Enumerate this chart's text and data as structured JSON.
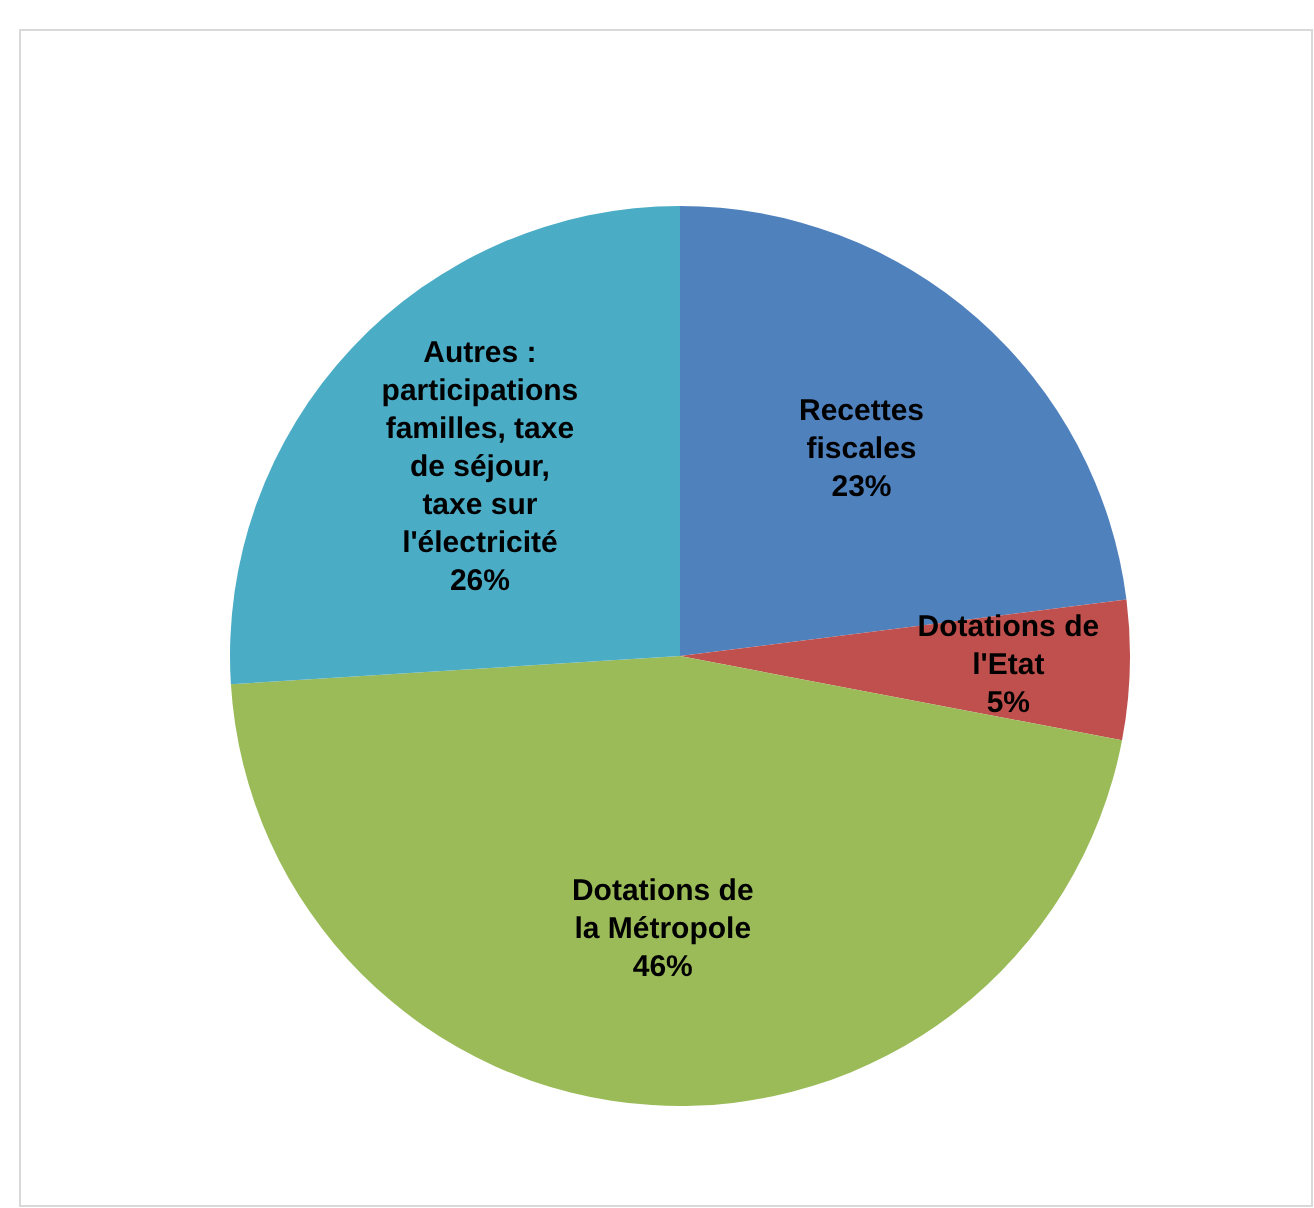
{
  "chart_data": {
    "type": "pie",
    "categories": [
      "Recettes fiscales",
      "Dotations de l'Etat",
      "Dotations de la  Métropole",
      "Autres : participations familles, taxe de séjour, taxe sur l'électricité"
    ],
    "values": [
      23,
      5,
      46,
      26
    ],
    "colors": [
      "#4f81bd",
      "#c0504d",
      "#9bbb59",
      "#4bacc6"
    ],
    "value_labels": [
      "23%",
      "5%",
      "46%",
      "26%"
    ]
  }
}
